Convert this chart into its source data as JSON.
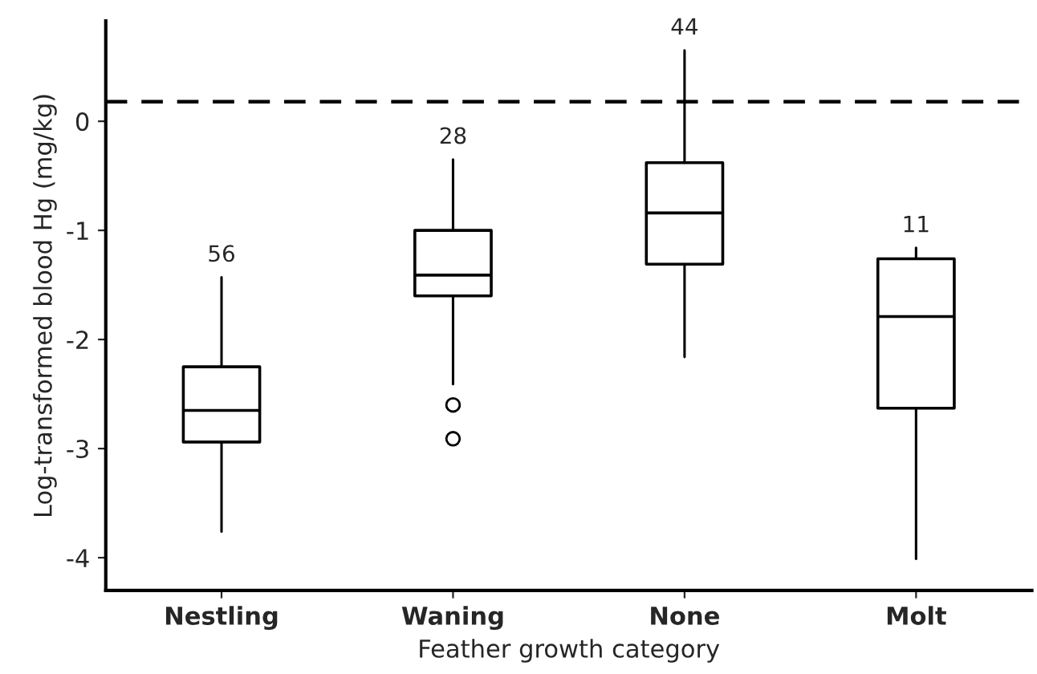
{
  "chart_data": {
    "type": "box",
    "xlabel": "Feather growth category",
    "ylabel": "Log-transformed blood Hg (mg/kg)",
    "categories": [
      "Nestling",
      "Waning",
      "None",
      "Molt"
    ],
    "boxes": [
      {
        "low": -3.76,
        "q1": -2.94,
        "median": -2.65,
        "q3": -2.25,
        "high": -1.43
      },
      {
        "low": -2.41,
        "q1": -1.6,
        "median": -1.41,
        "q3": -1.0,
        "high": -0.35,
        "outliers": [
          -2.6,
          -2.91
        ]
      },
      {
        "low": -2.16,
        "q1": -1.31,
        "median": -0.84,
        "q3": -0.38,
        "high": 0.65
      },
      {
        "low": -4.01,
        "q1": -2.63,
        "median": -1.79,
        "q3": -1.26,
        "high": -1.16
      }
    ],
    "ylim": [
      -4.3,
      0.92
    ],
    "yticks": [
      -4,
      -3,
      -2,
      -1,
      0
    ],
    "ref_lines": [
      {
        "axis": "y",
        "value": 0.18,
        "line_style": "dashed",
        "color": "#000000"
      }
    ],
    "annotations": [
      "56",
      "28",
      "44",
      "11"
    ],
    "grid": false,
    "legend": false
  }
}
